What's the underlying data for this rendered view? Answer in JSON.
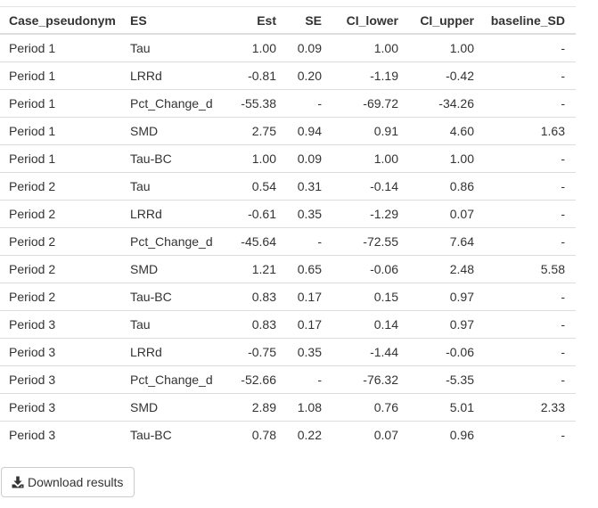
{
  "table": {
    "columns": [
      "Case_pseudonym",
      "ES",
      "Est",
      "SE",
      "CI_lower",
      "CI_upper",
      "baseline_SD"
    ],
    "rows": [
      [
        "Period 1",
        "Tau",
        "1.00",
        "0.09",
        "1.00",
        "1.00",
        "-"
      ],
      [
        "Period 1",
        "LRRd",
        "-0.81",
        "0.20",
        "-1.19",
        "-0.42",
        "-"
      ],
      [
        "Period 1",
        "Pct_Change_d",
        "-55.38",
        "-",
        "-69.72",
        "-34.26",
        "-"
      ],
      [
        "Period 1",
        "SMD",
        "2.75",
        "0.94",
        "0.91",
        "4.60",
        "1.63"
      ],
      [
        "Period 1",
        "Tau-BC",
        "1.00",
        "0.09",
        "1.00",
        "1.00",
        "-"
      ],
      [
        "Period 2",
        "Tau",
        "0.54",
        "0.31",
        "-0.14",
        "0.86",
        "-"
      ],
      [
        "Period 2",
        "LRRd",
        "-0.61",
        "0.35",
        "-1.29",
        "0.07",
        "-"
      ],
      [
        "Period 2",
        "Pct_Change_d",
        "-45.64",
        "-",
        "-72.55",
        "7.64",
        "-"
      ],
      [
        "Period 2",
        "SMD",
        "1.21",
        "0.65",
        "-0.06",
        "2.48",
        "5.58"
      ],
      [
        "Period 2",
        "Tau-BC",
        "0.83",
        "0.17",
        "0.15",
        "0.97",
        "-"
      ],
      [
        "Period 3",
        "Tau",
        "0.83",
        "0.17",
        "0.14",
        "0.97",
        "-"
      ],
      [
        "Period 3",
        "LRRd",
        "-0.75",
        "0.35",
        "-1.44",
        "-0.06",
        "-"
      ],
      [
        "Period 3",
        "Pct_Change_d",
        "-52.66",
        "-",
        "-76.32",
        "-5.35",
        "-"
      ],
      [
        "Period 3",
        "SMD",
        "2.89",
        "1.08",
        "0.76",
        "5.01",
        "2.33"
      ],
      [
        "Period 3",
        "Tau-BC",
        "0.78",
        "0.22",
        "0.07",
        "0.96",
        "-"
      ]
    ]
  },
  "download": {
    "label": "Download results",
    "icon": "download-icon"
  }
}
